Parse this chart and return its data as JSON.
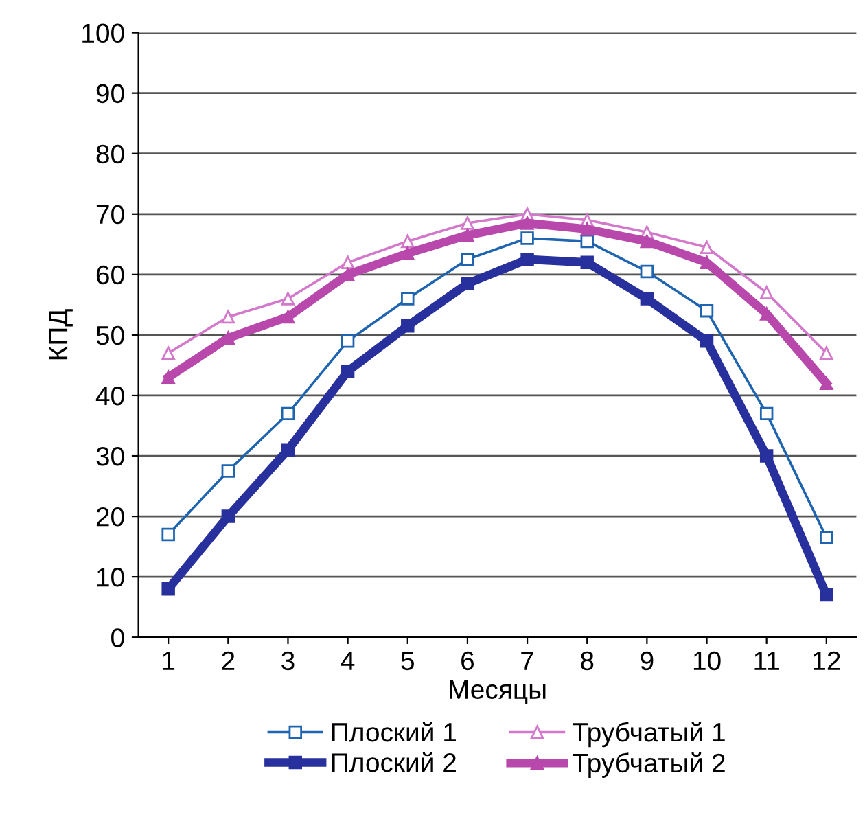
{
  "chart_data": {
    "type": "line",
    "xlabel": "Месяцы",
    "ylabel": "КПД",
    "categories": [
      "1",
      "2",
      "3",
      "4",
      "5",
      "6",
      "7",
      "8",
      "9",
      "10",
      "11",
      "12"
    ],
    "ylim": [
      0,
      100
    ],
    "yticks": [
      0,
      10,
      20,
      30,
      40,
      50,
      60,
      70,
      80,
      90,
      100
    ],
    "grid": "y",
    "legend": "bottom",
    "series": [
      {
        "name": "Плоский 1",
        "color": "#1e64b0",
        "marker": "square",
        "values": [
          17,
          27.5,
          37,
          49,
          56,
          62.5,
          66,
          65.5,
          60.5,
          54,
          37,
          16.5
        ]
      },
      {
        "name": "Плоский 2",
        "color": "#27309c",
        "marker": "square",
        "values": [
          8,
          20,
          31,
          44,
          51.5,
          58.5,
          62.5,
          62,
          56,
          49,
          30,
          7
        ]
      },
      {
        "name": "Трубчатый 1",
        "color": "#d478cc",
        "marker": "triangle",
        "values": [
          47,
          53,
          56,
          62,
          65.5,
          68.5,
          70,
          69,
          67,
          64.5,
          57,
          47
        ]
      },
      {
        "name": "Трубчатый 2",
        "color": "#b848ac",
        "marker": "triangle",
        "values": [
          43,
          49.5,
          53,
          60,
          63.5,
          66.5,
          68.5,
          67.5,
          65.5,
          62,
          53.5,
          42
        ]
      }
    ]
  }
}
